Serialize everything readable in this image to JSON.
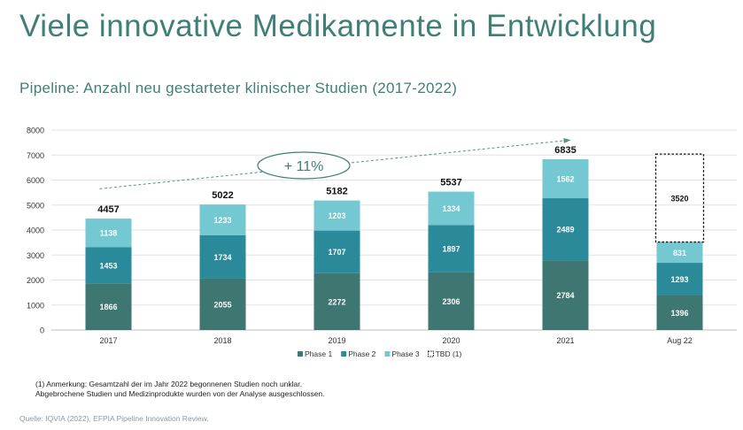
{
  "page": {
    "title": "Viele innovative Medikamente in Entwicklung",
    "subtitle": "Pipeline: Anzahl neu gestarteter klinischer Studien (2017-2022)",
    "footnote_line1": "(1) Anmerkung: Gesamtzahl der im Jahr 2022 begonnenen Studien noch unklar.",
    "footnote_line2": "Abgebrochene Studien und Medizinprodukte wurden von der Analyse ausgeschlossen.",
    "source": "Quelle: IQVIA (2022), EFPIA Pipeline Innovation Review."
  },
  "chart_data": {
    "type": "bar",
    "stacked": true,
    "categories": [
      "2017",
      "2018",
      "2019",
      "2020",
      "2021",
      "Aug 22"
    ],
    "series": [
      {
        "name": "Phase 1",
        "color": "#3e7672",
        "values": [
          1866,
          2055,
          2272,
          2306,
          2784,
          1396
        ]
      },
      {
        "name": "Phase 2",
        "color": "#2a8a99",
        "values": [
          1453,
          1734,
          1707,
          1897,
          2489,
          1293
        ]
      },
      {
        "name": "Phase 3",
        "color": "#74c8d2",
        "values": [
          1138,
          1233,
          1203,
          1334,
          1562,
          831
        ]
      },
      {
        "name": "TBD (1)",
        "color": "#ffffff",
        "dashed": true,
        "values": [
          null,
          null,
          null,
          null,
          null,
          3520
        ]
      }
    ],
    "totals": [
      "4457",
      "5022",
      "5182",
      "5537",
      "6835",
      ""
    ],
    "yticks": [
      0,
      1000,
      2000,
      3000,
      4000,
      5000,
      6000,
      7000,
      8000
    ],
    "ylim": [
      0,
      8000
    ],
    "grid": true,
    "legend_position": "bottom",
    "annotation": {
      "text": "+ 11%",
      "from_category": "2017",
      "to_category": "2021"
    }
  }
}
